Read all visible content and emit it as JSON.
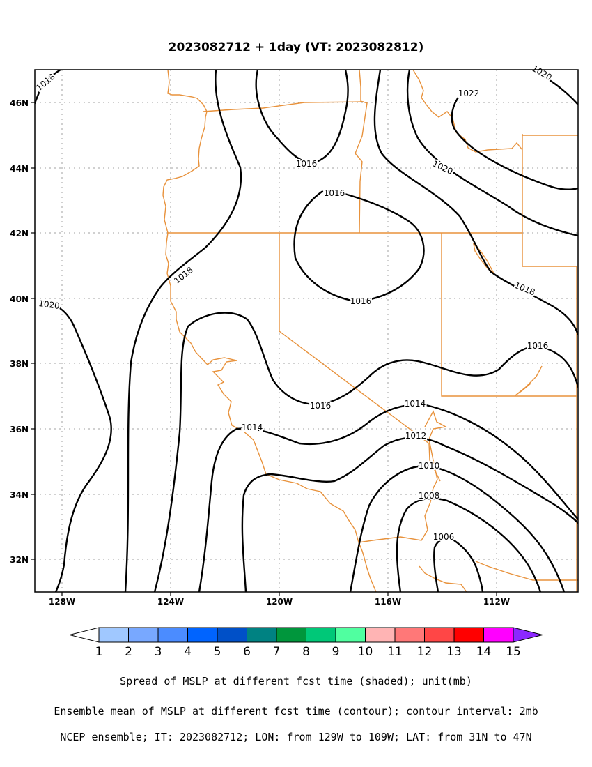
{
  "title": "2023082712 + 1day (VT: 2023082812)",
  "lon_labels": [
    "128W",
    "124W",
    "120W",
    "116W",
    "112W"
  ],
  "lat_labels": [
    "46N",
    "44N",
    "42N",
    "40N",
    "38N",
    "36N",
    "34N",
    "32N"
  ],
  "colorbar": {
    "ticks": [
      "1",
      "2",
      "3",
      "4",
      "5",
      "6",
      "7",
      "8",
      "9",
      "10",
      "11",
      "12",
      "13",
      "14",
      "15"
    ],
    "colors": [
      "#ffffff",
      "#a0c8ff",
      "#78a8ff",
      "#4b8cff",
      "#0064ff",
      "#0050c8",
      "#008282",
      "#00963c",
      "#00c878",
      "#50ffa0",
      "#ffb4b4",
      "#ff7878",
      "#ff4646",
      "#ff0000",
      "#ff00ff",
      "#8c28ff"
    ]
  },
  "contour_labels": [
    "1018",
    "1020",
    "1022",
    "1020",
    "1016",
    "1016",
    "1018",
    "1016",
    "1020",
    "1018",
    "1016",
    "1016",
    "1014",
    "1014",
    "1012",
    "1010",
    "1008",
    "1006"
  ],
  "captions": {
    "line1": "Spread of MSLP at different fcst time (shaded); unit(mb)",
    "line2": "Ensemble mean of MSLP at different fcst time (contour); contour interval: 2mb",
    "line3": "NCEP ensemble; IT: 2023082712; LON: from 129W to 109W; LAT: from 31N to 47N"
  }
}
